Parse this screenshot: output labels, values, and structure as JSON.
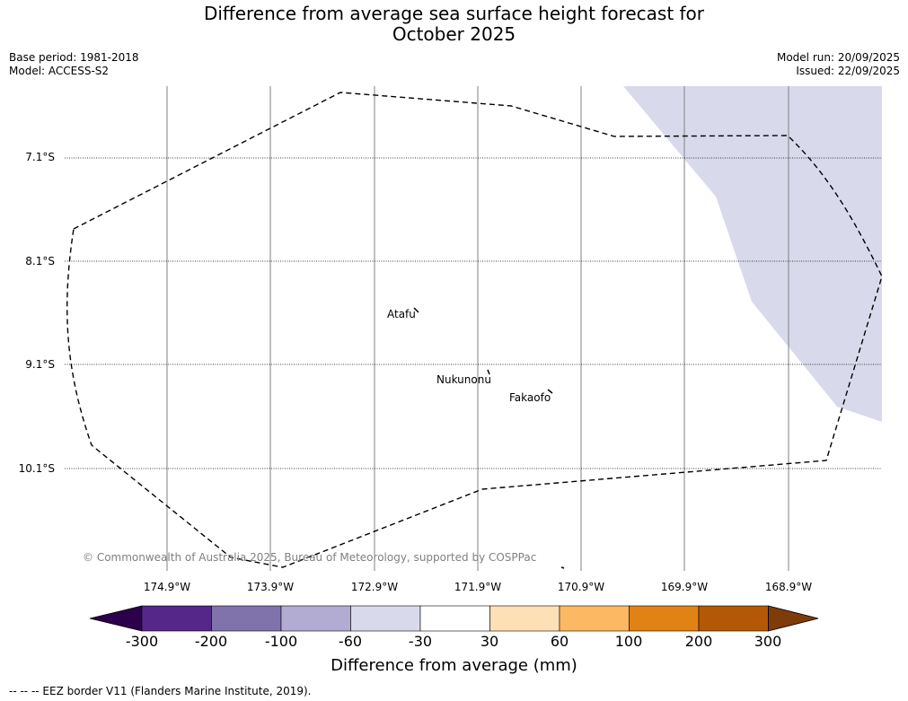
{
  "title": {
    "line1": "Difference from average sea surface height forecast for",
    "line2": "October 2025"
  },
  "meta": {
    "base_period": "Base period: 1981-2018",
    "model": "Model: ACCESS-S2",
    "model_run": "Model run: 20/09/2025",
    "issued": "Issued: 22/09/2025"
  },
  "map": {
    "lat_labels": [
      "7.1°S",
      "8.1°S",
      "9.1°S",
      "10.1°S"
    ],
    "lon_labels": [
      "174.9°W",
      "173.9°W",
      "172.9°W",
      "171.9°W",
      "170.9°W",
      "169.9°W",
      "168.9°W"
    ],
    "places": [
      "Atafu",
      "Nukunonu",
      "Fakaofo"
    ],
    "copyright": "© Commonwealth of Australia 2025, Bureau of Meteorology, supported by COSPPac",
    "anomaly_region_class": "-60 to -30",
    "eez_color": "#000000"
  },
  "colorbar": {
    "label": "Difference from average (mm)",
    "ticks": [
      "-300",
      "-200",
      "-100",
      "-60",
      "-30",
      "30",
      "60",
      "100",
      "200",
      "300"
    ],
    "colors": [
      "#2d004b",
      "#542788",
      "#8073ac",
      "#b2abd2",
      "#d8daeb",
      "#ffffff",
      "#fee0b6",
      "#fdb863",
      "#e08214",
      "#b35806",
      "#7f3b08"
    ]
  },
  "footer": {
    "legend": "--  --  -- EEZ border V11 (Flanders Marine Institute, 2019)."
  }
}
